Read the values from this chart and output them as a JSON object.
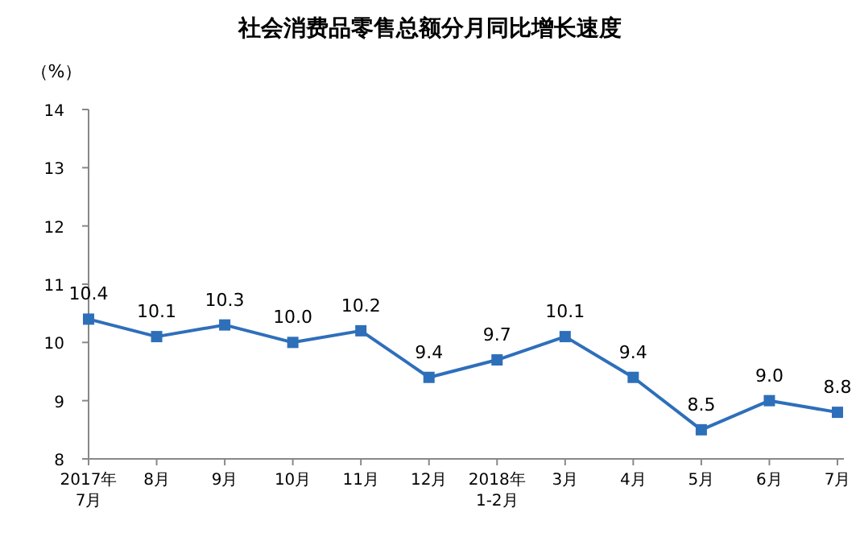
{
  "chart_data": {
    "type": "line",
    "title": "社会消费品零售总额分月同比增长速度",
    "ylabel": "（%）",
    "categories": [
      "2017年\n7月",
      "8月",
      "9月",
      "10月",
      "11月",
      "12月",
      "2018年\n1-2月",
      "3月",
      "4月",
      "5月",
      "6月",
      "7月"
    ],
    "series": [
      {
        "color": "#2e6fba",
        "values": [
          10.4,
          10.1,
          10.3,
          10.0,
          10.2,
          9.4,
          9.7,
          10.1,
          9.4,
          8.5,
          9.0,
          8.8
        ],
        "value_labels": [
          "10.4",
          "10.1",
          "10.3",
          "10.0",
          "10.2",
          "9.4",
          "9.7",
          "10.1",
          "9.4",
          "8.5",
          "9.0",
          "8.8"
        ]
      }
    ],
    "ylim": [
      8,
      14
    ],
    "yticks": [
      8,
      9,
      10,
      11,
      12,
      13,
      14
    ],
    "marker": "square",
    "line_style": "solid",
    "grid": false
  }
}
